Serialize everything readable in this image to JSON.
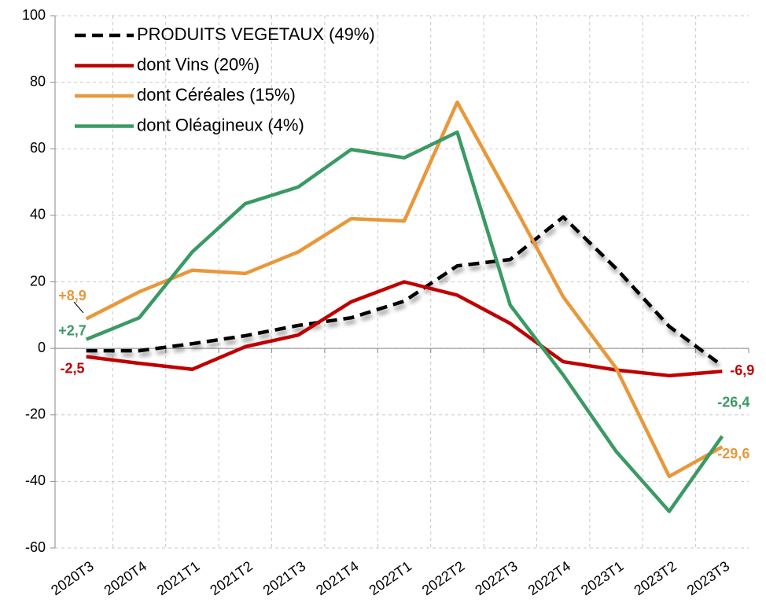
{
  "chart_data": {
    "type": "line",
    "categories": [
      "2020T3",
      "2020T4",
      "2021T1",
      "2021T2",
      "2021T3",
      "2021T4",
      "2022T1",
      "2022T2",
      "2022T3",
      "2022T4",
      "2023T1",
      "2023T2",
      "2023T3"
    ],
    "ylim": [
      -60,
      100
    ],
    "yticks": [
      -60,
      -40,
      -20,
      0,
      20,
      40,
      60,
      80,
      100
    ],
    "grid": true,
    "legend": "top-left",
    "series": [
      {
        "name": "PRODUITS VEGETAUX (49%)",
        "color": "#000000",
        "dashed": true,
        "values": [
          -0.7,
          -0.7,
          1.4,
          3.8,
          6.9,
          9.2,
          14.2,
          24.8,
          26.7,
          39.5,
          24,
          6.6,
          -5.2
        ]
      },
      {
        "name": "dont Vins (20%)",
        "color": "#c00000",
        "values": [
          -2.5,
          -4.5,
          -6.3,
          0.5,
          4,
          14,
          20,
          16,
          7.5,
          -4,
          -6.5,
          -8.2,
          -6.9
        ],
        "value_labels": [
          "-2,5",
          null,
          null,
          null,
          null,
          null,
          null,
          null,
          null,
          null,
          null,
          null,
          "-6,9"
        ]
      },
      {
        "name": "dont Céréales (15%)",
        "color": "#e8983a",
        "values": [
          8.9,
          17,
          23.5,
          22.5,
          29,
          39,
          38.3,
          74,
          45,
          15.5,
          -6,
          -38.5,
          -29.6
        ],
        "value_labels": [
          "+8,9",
          null,
          null,
          null,
          null,
          null,
          null,
          null,
          null,
          null,
          null,
          null,
          "-29,6"
        ]
      },
      {
        "name": "dont Oléagineux (4%)",
        "color": "#3a9a64",
        "values": [
          2.7,
          9.2,
          29,
          43.5,
          48.5,
          59.8,
          57.3,
          65,
          13,
          -8,
          -31,
          -49,
          -26.4
        ],
        "value_labels": [
          "+2,7",
          null,
          null,
          null,
          null,
          null,
          null,
          null,
          null,
          null,
          null,
          null,
          "-26,4"
        ]
      }
    ]
  }
}
